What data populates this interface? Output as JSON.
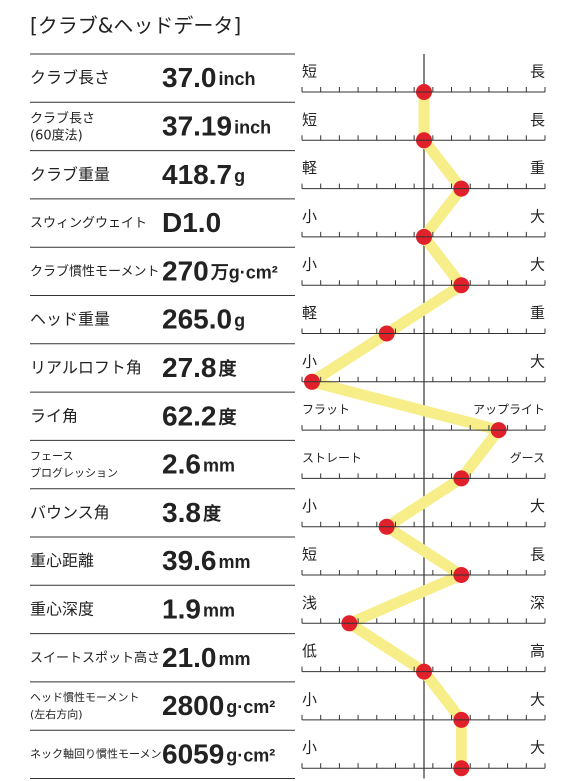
{
  "header": {
    "title": "[クラブ&ヘッドデータ]"
  },
  "scale": [
    -3,
    3
  ],
  "rows": [
    {
      "label": "クラブ長さ",
      "value": "37.0",
      "unit": "inch",
      "left": "短",
      "right": "長",
      "position": 0
    },
    {
      "label": "クラブ長さ\n(60度法)",
      "value": "37.19",
      "unit": "inch",
      "left": "短",
      "right": "長",
      "position": 0
    },
    {
      "label": "クラブ重量",
      "value": "418.7",
      "unit": "g",
      "left": "軽",
      "right": "重",
      "position": 1
    },
    {
      "label": "スウィングウェイト",
      "value": "D1.0",
      "unit": null,
      "left": "小",
      "right": "大",
      "position": 0
    },
    {
      "label": "クラブ慣性モーメント",
      "value": "270",
      "unit": "万g·cm²",
      "left": "小",
      "right": "大",
      "position": 1
    },
    {
      "label": "ヘッド重量",
      "value": "265.0",
      "unit": "g",
      "left": "軽",
      "right": "重",
      "position": -1
    },
    {
      "label": "リアルロフト角",
      "value": "27.8",
      "unit": "度",
      "left": "小",
      "right": "大",
      "position": -3
    },
    {
      "label": "ライ角",
      "value": "62.2",
      "unit": "度",
      "left": "フラット",
      "right": "アップライト",
      "position": 2
    },
    {
      "label": "フェース\nプログレッション",
      "value": "2.6",
      "unit": "mm",
      "left": "ストレート",
      "right": "グース",
      "position": 1
    },
    {
      "label": "バウンス角",
      "value": "3.8",
      "unit": "度",
      "left": "小",
      "right": "大",
      "position": -1
    },
    {
      "label": "重心距離",
      "value": "39.6",
      "unit": "mm",
      "left": "短",
      "right": "長",
      "position": 1
    },
    {
      "label": "重心深度",
      "value": "1.9",
      "unit": "mm",
      "left": "浅",
      "right": "深",
      "position": -2
    },
    {
      "label": "スイートスポット高さ",
      "value": "21.0",
      "unit": "mm",
      "left": "低",
      "right": "高",
      "position": 0
    },
    {
      "label": "ヘッド慣性モーメント\n(左右方向)",
      "value": "2800",
      "unit": "g·cm²",
      "left": "小",
      "right": "大",
      "position": 1
    },
    {
      "label": "ネック軸回り慣性モーメント",
      "value": "6059",
      "unit": "g·cm²",
      "left": "小",
      "right": "大",
      "position": 1
    }
  ]
}
